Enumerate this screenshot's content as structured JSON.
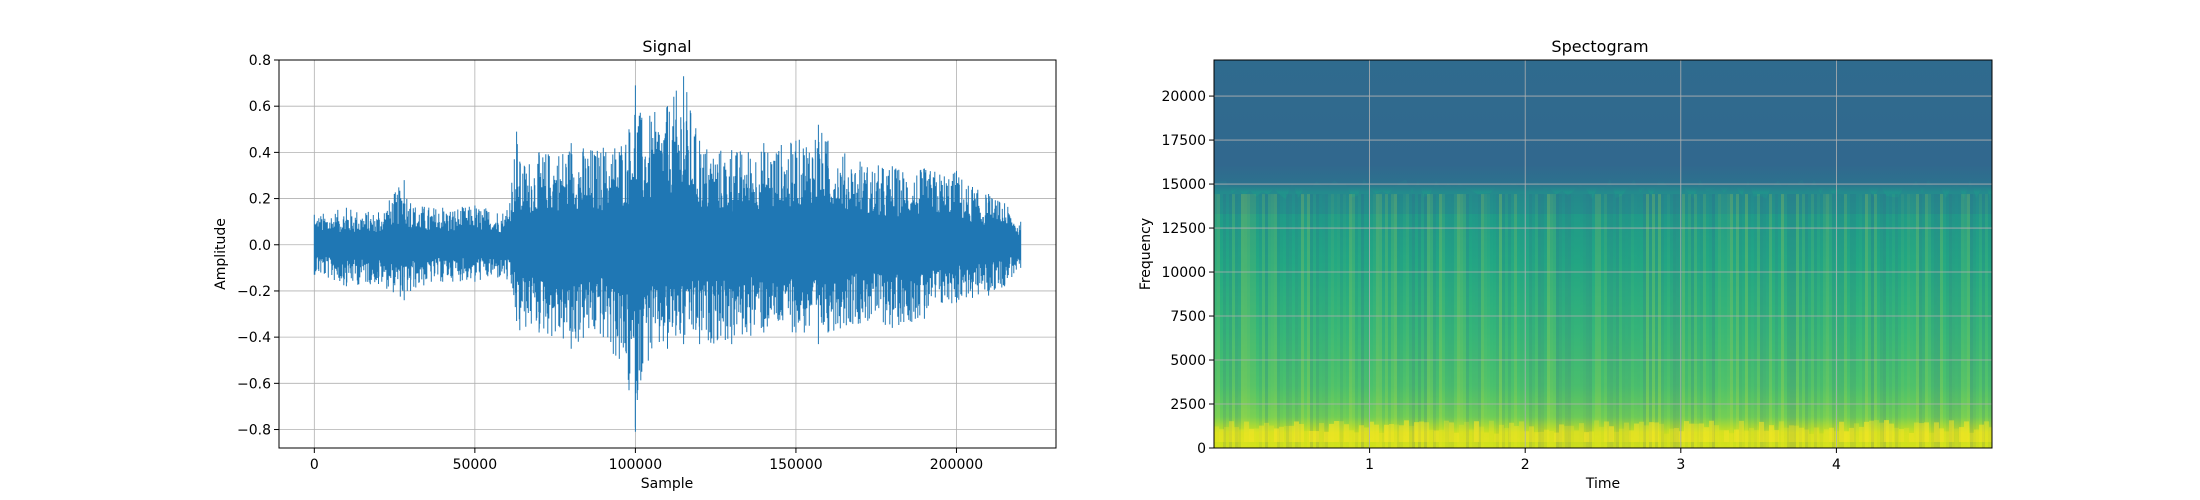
{
  "chart_data": [
    {
      "type": "line",
      "title": "Signal",
      "xlabel": "Sample",
      "ylabel": "Amplitude",
      "xlim": [
        -11000,
        231000
      ],
      "ylim": [
        -0.88,
        0.8
      ],
      "xticks": [
        0,
        50000,
        100000,
        150000,
        200000
      ],
      "xtick_labels": [
        "0",
        "50000",
        "100000",
        "150000",
        "200000"
      ],
      "yticks": [
        0.8,
        0.6,
        0.4,
        0.2,
        0.0,
        -0.2,
        -0.4,
        -0.6,
        -0.8
      ],
      "ytick_labels": [
        "0.8",
        "0.6",
        "0.4",
        "0.2",
        "0.0",
        "−0.2",
        "−0.4",
        "−0.6",
        "−0.8"
      ],
      "grid": true,
      "color": "#1f77b4",
      "series": [
        {
          "x": [
            0,
            10000,
            20000,
            28000,
            30000,
            40000,
            50000,
            60000,
            63000,
            64000,
            70000,
            80000,
            90000,
            98000,
            100000,
            102000,
            110000,
            115000,
            120000,
            130000,
            140000,
            150000,
            157000,
            160000,
            170000,
            180000,
            190000,
            200000,
            205000,
            210000,
            215000,
            220000
          ],
          "upper": [
            0.13,
            0.16,
            0.14,
            0.28,
            0.18,
            0.16,
            0.17,
            0.15,
            0.49,
            0.36,
            0.4,
            0.44,
            0.42,
            0.5,
            0.69,
            0.55,
            0.6,
            0.73,
            0.45,
            0.41,
            0.44,
            0.45,
            0.52,
            0.45,
            0.36,
            0.34,
            0.33,
            0.32,
            0.25,
            0.22,
            0.18,
            0.1
          ],
          "lower": [
            -0.13,
            -0.18,
            -0.17,
            -0.24,
            -0.2,
            -0.16,
            -0.16,
            -0.15,
            -0.33,
            -0.37,
            -0.38,
            -0.45,
            -0.4,
            -0.63,
            -0.81,
            -0.55,
            -0.45,
            -0.43,
            -0.43,
            -0.43,
            -0.38,
            -0.38,
            -0.43,
            -0.38,
            -0.34,
            -0.36,
            -0.32,
            -0.25,
            -0.23,
            -0.22,
            -0.18,
            -0.1
          ]
        }
      ]
    },
    {
      "type": "heatmap",
      "title": "Spectogram",
      "xlabel": "Time",
      "ylabel": "Frequency",
      "xlim": [
        0,
        5
      ],
      "ylim": [
        0,
        22050
      ],
      "xticks": [
        1,
        2,
        3,
        4
      ],
      "xtick_labels": [
        "1",
        "2",
        "3",
        "4"
      ],
      "yticks": [
        0,
        2500,
        5000,
        7500,
        10000,
        12500,
        15000,
        17500,
        20000
      ],
      "ytick_labels": [
        "0",
        "2500",
        "5000",
        "7500",
        "10000",
        "12500",
        "15000",
        "17500",
        "20000"
      ],
      "grid": true,
      "colormap": "viridis",
      "cutoff_frequency": 15000
    }
  ]
}
